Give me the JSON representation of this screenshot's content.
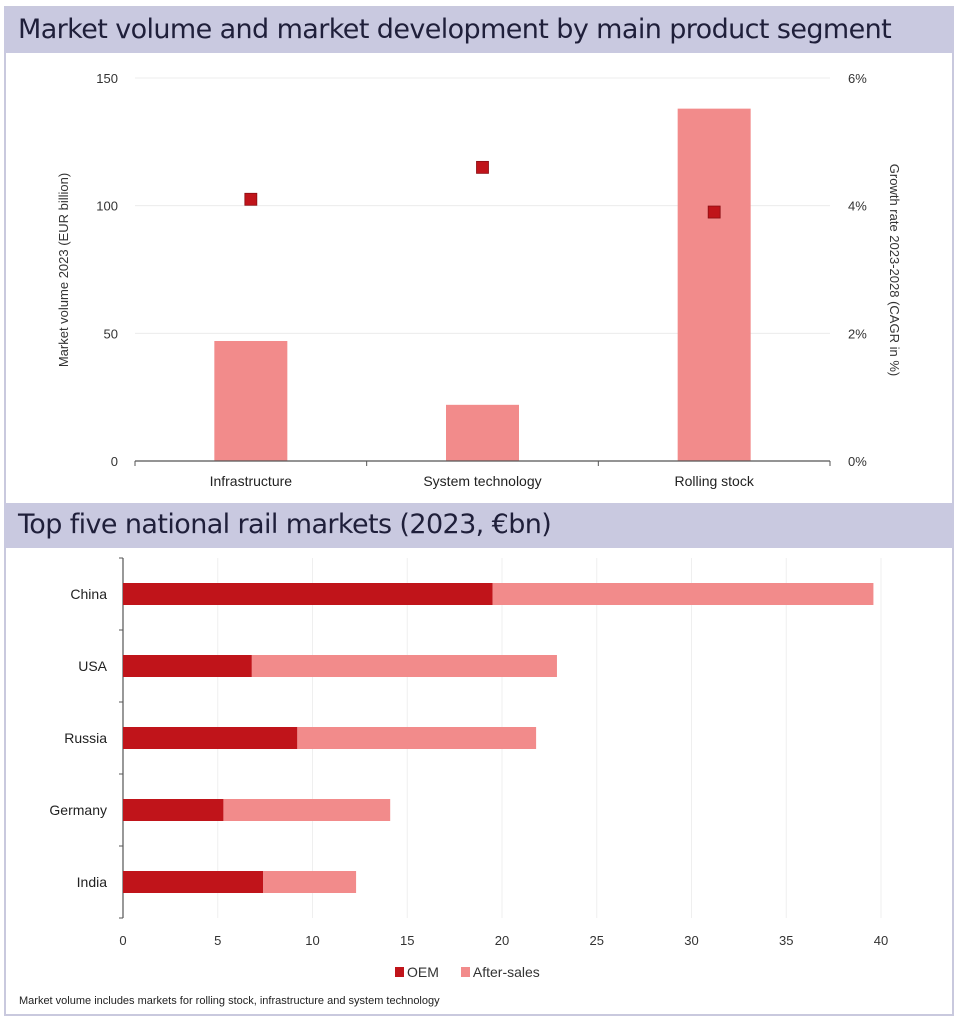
{
  "chart_data": [
    {
      "type": "bar",
      "title": "Market volume and market development by main product segment",
      "categories": [
        "Infrastructure",
        "System technology",
        "Rolling stock"
      ],
      "series": [
        {
          "name": "Market volume 2023 (EUR billion)",
          "axis": "left",
          "kind": "bar",
          "values": [
            47,
            22,
            138
          ],
          "color": "#f28b8b"
        },
        {
          "name": "Growth rate 2023-2028 (CAGR in %)",
          "axis": "right",
          "kind": "marker",
          "values": [
            4.1,
            4.6,
            3.9
          ],
          "color": "#c0141a"
        }
      ],
      "ylabel": "Market volume 2023 (EUR billion)",
      "ylabel_right": "Growth rate 2023-2028 (CAGR in %)",
      "ylim": [
        0,
        150
      ],
      "ylim_right": [
        0,
        6
      ],
      "yticks": [
        "0",
        "50",
        "100",
        "150"
      ],
      "yticks_right": [
        "0%",
        "2%",
        "4%",
        "6%"
      ],
      "grid": true
    },
    {
      "type": "bar",
      "orientation": "horizontal",
      "stacked": true,
      "title": "Top five national rail markets (2023, €bn)",
      "categories": [
        "China",
        "USA",
        "Russia",
        "Germany",
        "India"
      ],
      "series": [
        {
          "name": "OEM",
          "values": [
            19.5,
            6.8,
            9.2,
            5.3,
            7.4
          ],
          "color": "#c0141a"
        },
        {
          "name": "After-sales",
          "values": [
            20.1,
            16.1,
            12.6,
            8.8,
            4.9
          ],
          "color": "#f28b8b"
        }
      ],
      "xlim": [
        0,
        40
      ],
      "xticks": [
        "0",
        "5",
        "10",
        "15",
        "20",
        "25",
        "30",
        "35",
        "40"
      ],
      "legend": "bottom-center",
      "grid": true
    }
  ],
  "footnote": "Market volume includes markets for rolling stock, infrastructure and system technology"
}
